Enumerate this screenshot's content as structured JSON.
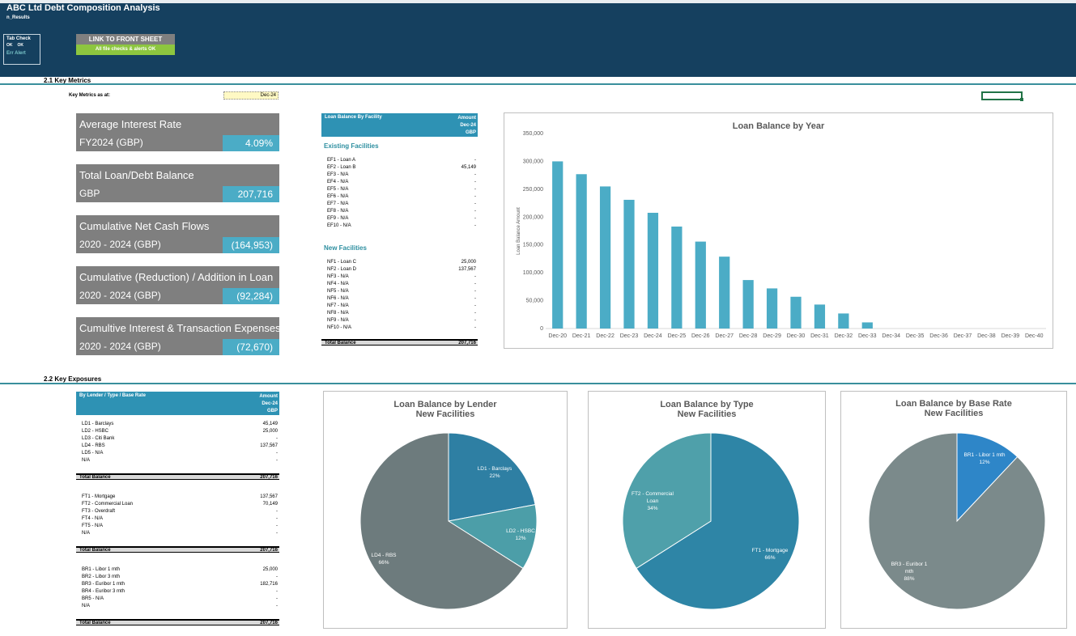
{
  "header": {
    "title": "ABC Ltd Debt Composition Analysis",
    "sheet_name": "n_Results",
    "tab_check": {
      "label": "Tab Check",
      "ok1": "OK",
      "ok2": "OK",
      "err": "Err Alert"
    },
    "link_button": "LINK TO FRONT SHEET",
    "status_bar": "All file checks & alerts OK",
    "colors": {
      "header_bg": "#15405f",
      "accent": "#4bacc6",
      "ok_green": "#8dc63f"
    }
  },
  "section1": {
    "title": "2.1 Key Metrics",
    "as_at_label": "Key Metrics as at:",
    "as_at_value": "Dec-24"
  },
  "cards": [
    {
      "title": "Average Interest Rate",
      "sub": "FY2024 (GBP)",
      "value": "4.09%"
    },
    {
      "title": "Total Loan/Debt Balance",
      "sub": "GBP",
      "value": "207,716"
    },
    {
      "title": "Cumulative Net Cash Flows",
      "sub": "2020 - 2024 (GBP)",
      "value": "(164,953)"
    },
    {
      "title": "Cumulative (Reduction) / Addition in Loan",
      "sub": "2020 - 2024 (GBP)",
      "value": "(92,284)"
    },
    {
      "title": "Cumultive Interest & Transaction Expenses",
      "sub": "2020 - 2024 (GBP)",
      "value": "(72,670)"
    }
  ],
  "facility_table": {
    "header_left": "Loan Balance By Facility",
    "header_r1": "Amount",
    "header_r2": "Dec-24",
    "header_r3": "GBP",
    "existing_label": "Existing Facilities",
    "existing": [
      {
        "label": "EF1 - Loan A",
        "value": "-"
      },
      {
        "label": "EF2 - Loan B",
        "value": "45,149"
      },
      {
        "label": "EF3 - N/A",
        "value": "-"
      },
      {
        "label": "EF4 - N/A",
        "value": "-"
      },
      {
        "label": "EF5 - N/A",
        "value": "-"
      },
      {
        "label": "EF6 - N/A",
        "value": "-"
      },
      {
        "label": "EF7 - N/A",
        "value": "-"
      },
      {
        "label": "EF8 - N/A",
        "value": "-"
      },
      {
        "label": "EF9 - N/A",
        "value": "-"
      },
      {
        "label": "EF10 - N/A",
        "value": "-"
      }
    ],
    "new_label": "New Facilities",
    "new": [
      {
        "label": "NF1 - Loan C",
        "value": "25,000"
      },
      {
        "label": "NF2 - Loan D",
        "value": "137,567"
      },
      {
        "label": "NF3 - N/A",
        "value": "-"
      },
      {
        "label": "NF4 - N/A",
        "value": "-"
      },
      {
        "label": "NF5 - N/A",
        "value": "-"
      },
      {
        "label": "NF6 - N/A",
        "value": "-"
      },
      {
        "label": "NF7 - N/A",
        "value": "-"
      },
      {
        "label": "NF8 - N/A",
        "value": "-"
      },
      {
        "label": "NF9 - N/A",
        "value": "-"
      },
      {
        "label": "NF10 - N/A",
        "value": "-"
      }
    ],
    "total_label": "Total Balance",
    "total_value": "207,716"
  },
  "section2": {
    "title": "2.2 Key Exposures"
  },
  "exposure_table": {
    "header_left": "By Lender / Type / Base Rate",
    "header_r1": "Amount",
    "header_r2": "Dec-24",
    "header_r3": "GBP",
    "lenders": [
      {
        "label": "LD1 - Barclays",
        "value": "45,149"
      },
      {
        "label": "LD2 - HSBC",
        "value": "25,000"
      },
      {
        "label": "LD3 - Citi Bank",
        "value": "-"
      },
      {
        "label": "LD4 - RBS",
        "value": "137,567"
      },
      {
        "label": "LD5 - N/A",
        "value": "-"
      },
      {
        "label": "N/A",
        "value": "-"
      }
    ],
    "types": [
      {
        "label": "FT1 - Mortgage",
        "value": "137,567"
      },
      {
        "label": "FT2 - Commercial Loan",
        "value": "70,149"
      },
      {
        "label": "FT3 - Overdraft",
        "value": "-"
      },
      {
        "label": "FT4 - N/A",
        "value": "-"
      },
      {
        "label": "FT5 - N/A",
        "value": "-"
      },
      {
        "label": "N/A",
        "value": "-"
      }
    ],
    "rates": [
      {
        "label": "BR1 - Libor 1 mth",
        "value": "25,000"
      },
      {
        "label": "BR2 - Libor 3 mth",
        "value": "-"
      },
      {
        "label": "BR3 - Euribor 1 mth",
        "value": "182,716"
      },
      {
        "label": "BR4 - Euribor 3 mth",
        "value": "-"
      },
      {
        "label": "BR5 - N/A",
        "value": "-"
      },
      {
        "label": "N/A",
        "value": "-"
      }
    ],
    "total_label": "Total Balance",
    "total_value": "207,716"
  },
  "chart_data": [
    {
      "type": "bar",
      "title": "Loan Balance by Year",
      "ylabel": "Loan Balance Amount",
      "xlabel": "",
      "ylim": [
        0,
        350000
      ],
      "yticks": [
        "0",
        "50,000",
        "100,000",
        "150,000",
        "200,000",
        "250,000",
        "300,000",
        "350,000"
      ],
      "categories": [
        "Dec-20",
        "Dec-21",
        "Dec-22",
        "Dec-23",
        "Dec-24",
        "Dec-25",
        "Dec-26",
        "Dec-27",
        "Dec-28",
        "Dec-29",
        "Dec-30",
        "Dec-31",
        "Dec-32",
        "Dec-33",
        "Dec-34",
        "Dec-35",
        "Dec-36",
        "Dec-37",
        "Dec-38",
        "Dec-39",
        "Dec-40"
      ],
      "values": [
        300000,
        277000,
        255000,
        231000,
        207716,
        183000,
        156000,
        129000,
        87000,
        72000,
        57000,
        43000,
        27000,
        11000,
        0,
        0,
        0,
        0,
        0,
        0,
        0
      ],
      "color": "#4bacc6",
      "grid": false
    },
    {
      "type": "pie",
      "title": "Loan Balance by Lender",
      "subtitle": "New Facilities",
      "slices": [
        {
          "name": "LD1 - Barclays",
          "pct_label": "22%",
          "value": 22,
          "color": "#2e7fa3"
        },
        {
          "name": "LD2 - HSBC",
          "pct_label": "12%",
          "value": 12,
          "color": "#4c9ea8"
        },
        {
          "name": "LD4 - RBS",
          "pct_label": "66%",
          "value": 66,
          "color": "#6d7b7d"
        }
      ]
    },
    {
      "type": "pie",
      "title": "Loan Balance by Type",
      "subtitle": "New Facilities",
      "slices": [
        {
          "name": "FT1 - Mortgage",
          "pct_label": "66%",
          "value": 66,
          "color": "#2e85a6"
        },
        {
          "name": "FT2 - Commercial Loan",
          "pct_label": "34%",
          "value": 34,
          "color": "#4fa0aa"
        }
      ]
    },
    {
      "type": "pie",
      "title": "Loan Balance by Base Rate",
      "subtitle": "New Facilities",
      "slices": [
        {
          "name": "BR1 - Libor 1 mth",
          "pct_label": "12%",
          "value": 12,
          "color": "#2e86c8"
        },
        {
          "name": "BR3 - Euribor 1 mth",
          "pct_label": "88%",
          "value": 88,
          "color": "#7b8a8b"
        }
      ]
    }
  ]
}
